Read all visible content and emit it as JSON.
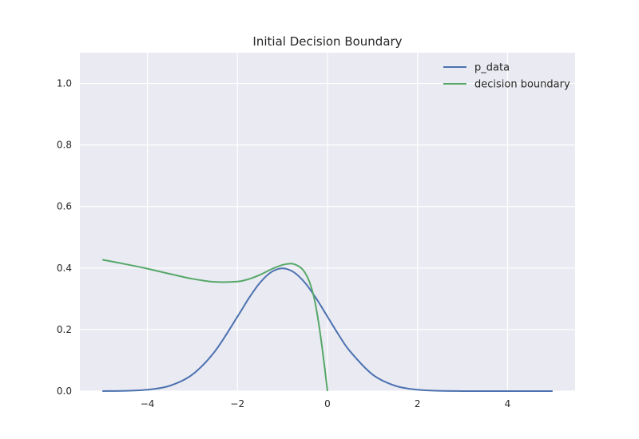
{
  "chart_data": {
    "type": "line",
    "title": "Initial Decision Boundary",
    "xlabel": "",
    "ylabel": "",
    "xlim": [
      -5.5,
      5.5
    ],
    "ylim": [
      0,
      1.1
    ],
    "xticks": [
      -4,
      -2,
      0,
      2,
      4
    ],
    "xtick_labels": [
      "−4",
      "−2",
      "0",
      "2",
      "4"
    ],
    "yticks": [
      0,
      0.2,
      0.4,
      0.6,
      0.8,
      1.0
    ],
    "ytick_labels": [
      "0.0",
      "0.2",
      "0.4",
      "0.6",
      "0.8",
      "1.0"
    ],
    "grid": true,
    "legend_position": "top-right",
    "series": [
      {
        "name": "p_data",
        "color": "#4c72b0",
        "x": [
          -5,
          -4.5,
          -4,
          -3.5,
          -3,
          -2.5,
          -2,
          -1.75,
          -1.5,
          -1.25,
          -1,
          -0.75,
          -0.5,
          -0.25,
          0,
          0.25,
          0.5,
          1,
          1.5,
          2,
          2.5,
          3,
          3.5,
          4,
          4.5,
          5
        ],
        "y": [
          0.0001,
          0.0009,
          0.0044,
          0.0175,
          0.054,
          0.1295,
          0.242,
          0.3011,
          0.3521,
          0.3867,
          0.3989,
          0.3867,
          0.3521,
          0.3011,
          0.242,
          0.1826,
          0.1295,
          0.054,
          0.0175,
          0.0044,
          0.0009,
          0.0001,
          0.0,
          0.0,
          0.0,
          0.0
        ]
      },
      {
        "name": "decision boundary",
        "color": "#55a868",
        "x": [
          -5,
          -4.5,
          -4,
          -3.5,
          -3,
          -2.5,
          -2,
          -1.75,
          -1.5,
          -1.25,
          -1,
          -0.85,
          -0.75,
          -0.6,
          -0.5,
          -0.4,
          -0.3,
          -0.2,
          -0.1,
          0
        ],
        "y": [
          0.427,
          0.413,
          0.398,
          0.381,
          0.365,
          0.355,
          0.356,
          0.364,
          0.378,
          0.396,
          0.41,
          0.414,
          0.413,
          0.402,
          0.385,
          0.355,
          0.305,
          0.225,
          0.12,
          0.0
        ]
      }
    ]
  }
}
